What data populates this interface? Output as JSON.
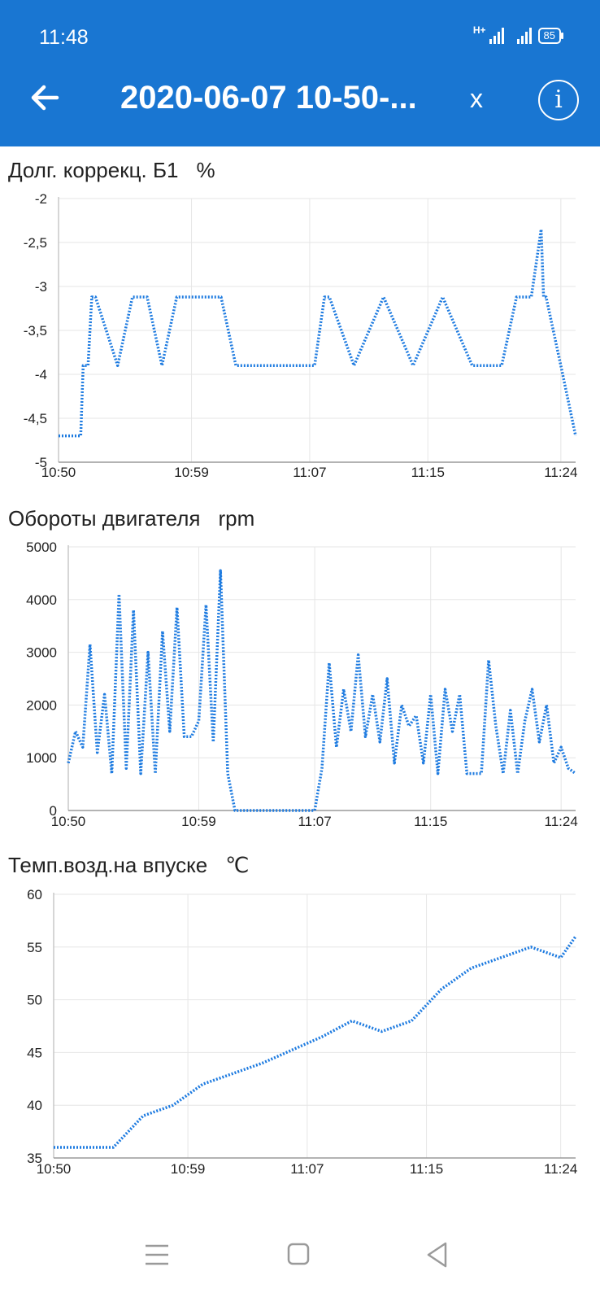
{
  "status_bar": {
    "time": "11:48",
    "network": "H+",
    "battery": "85"
  },
  "app_bar": {
    "title": "2020-06-07 10-50-...",
    "close_label": "x",
    "info_label": "i"
  },
  "colors": {
    "accent": "#1976d2",
    "series": "#1e7be0",
    "grid": "#e6e6e6"
  },
  "icons": {
    "back": "arrow-left-icon",
    "info": "info-circle-icon",
    "menu": "menu-icon",
    "home": "square-icon",
    "nav_back": "triangle-back-icon"
  },
  "charts": [
    {
      "title": "Долг. коррекц. Б1",
      "unit": "%"
    },
    {
      "title": "Обороты двигателя",
      "unit": "rpm"
    },
    {
      "title": "Темп.возд.на впуске",
      "unit": "℃"
    }
  ],
  "chart_data": [
    {
      "type": "line",
      "title": "Долг. коррекц. Б1",
      "ylabel": "%",
      "ylim": [
        -5,
        -2
      ],
      "yticks": [
        -2,
        -2.5,
        -3,
        -3.5,
        -4,
        -4.5,
        -5
      ],
      "ytick_labels": [
        "-2",
        "-2,5",
        "-3",
        "-3,5",
        "-4",
        "-4,5",
        "-5"
      ],
      "xlim": [
        "10:50",
        "11:25"
      ],
      "xticks": [
        "10:50",
        "10:59",
        "11:07",
        "11:15",
        "11:24"
      ],
      "grid": true,
      "series": [
        {
          "x": [
            "10:50",
            "10:51:30",
            "10:51:40",
            "10:52",
            "10:52:15",
            "10:52:30",
            "10:54",
            "10:55",
            "10:56",
            "10:57",
            "10:58",
            "11:00",
            "11:01",
            "11:02",
            "11:04",
            "11:06",
            "11:07:20",
            "11:08",
            "11:08:20",
            "11:10",
            "11:12",
            "11:14",
            "11:16",
            "11:18",
            "11:19",
            "11:20",
            "11:21",
            "11:22",
            "11:22:40",
            "11:22:50",
            "11:23",
            "11:24",
            "11:25"
          ],
          "y": [
            -4.7,
            -4.7,
            -3.9,
            -3.9,
            -3.12,
            -3.12,
            -3.9,
            -3.12,
            -3.12,
            -3.9,
            -3.12,
            -3.12,
            -3.12,
            -3.9,
            -3.9,
            -3.9,
            -3.9,
            -3.12,
            -3.12,
            -3.9,
            -3.12,
            -3.9,
            -3.12,
            -3.9,
            -3.9,
            -3.9,
            -3.12,
            -3.12,
            -2.35,
            -3.12,
            -3.12,
            -3.9,
            -4.7
          ]
        }
      ]
    },
    {
      "type": "line",
      "title": "Обороты двигателя",
      "ylabel": "rpm",
      "ylim": [
        0,
        5000
      ],
      "yticks": [
        0,
        1000,
        2000,
        3000,
        4000,
        5000
      ],
      "ytick_labels": [
        "0",
        "1000",
        "2000",
        "3000",
        "4000",
        "5000"
      ],
      "xlim": [
        "10:50",
        "11:25"
      ],
      "xticks": [
        "10:50",
        "10:59",
        "11:07",
        "11:15",
        "11:24"
      ],
      "grid": true,
      "series": [
        {
          "x": [
            "10:50",
            "10:50:30",
            "10:51",
            "10:51:30",
            "10:52",
            "10:52:30",
            "10:53",
            "10:53:30",
            "10:54",
            "10:54:30",
            "10:55",
            "10:55:30",
            "10:56",
            "10:56:30",
            "10:57",
            "10:57:30",
            "10:58",
            "10:58:30",
            "10:59",
            "10:59:30",
            "11:00",
            "11:00:30",
            "11:01",
            "11:01:30",
            "11:02",
            "11:04",
            "11:06",
            "11:07",
            "11:07:30",
            "11:08",
            "11:08:30",
            "11:09",
            "11:09:30",
            "11:10",
            "11:10:30",
            "11:11",
            "11:11:30",
            "11:12",
            "11:12:30",
            "11:13",
            "11:13:30",
            "11:14",
            "11:14:30",
            "11:15",
            "11:15:30",
            "11:16",
            "11:16:30",
            "11:17",
            "11:17:30",
            "11:18",
            "11:18:30",
            "11:19",
            "11:19:30",
            "11:20",
            "11:20:30",
            "11:21",
            "11:21:30",
            "11:22",
            "11:22:30",
            "11:23",
            "11:23:30",
            "11:24",
            "11:24:30",
            "11:25"
          ],
          "y": [
            900,
            1500,
            1200,
            3150,
            1100,
            2200,
            700,
            4100,
            800,
            3800,
            700,
            3000,
            700,
            3400,
            1500,
            3850,
            1400,
            1400,
            1700,
            3900,
            1300,
            4550,
            700,
            0,
            0,
            0,
            0,
            0,
            800,
            2800,
            1200,
            2300,
            1500,
            2950,
            1400,
            2200,
            1300,
            2500,
            900,
            2000,
            1600,
            1800,
            900,
            2200,
            700,
            2300,
            1500,
            2200,
            700,
            700,
            700,
            2850,
            1600,
            700,
            1900,
            700,
            1700,
            2300,
            1300,
            2000,
            900,
            1200,
            800,
            700
          ]
        }
      ]
    },
    {
      "type": "line",
      "title": "Темп.возд.на впуске",
      "ylabel": "℃",
      "ylim": [
        35,
        60
      ],
      "yticks": [
        35,
        40,
        45,
        50,
        55,
        60
      ],
      "ytick_labels": [
        "35",
        "40",
        "45",
        "50",
        "55",
        "60"
      ],
      "xlim": [
        "10:50",
        "11:25"
      ],
      "xticks": [
        "10:50",
        "10:59",
        "11:07",
        "11:15",
        "11:24"
      ],
      "grid": true,
      "series": [
        {
          "x": [
            "10:50",
            "10:54",
            "10:56",
            "10:58",
            "11:00",
            "11:04",
            "11:08",
            "11:10",
            "11:12",
            "11:14",
            "11:16",
            "11:18",
            "11:22",
            "11:24",
            "11:25"
          ],
          "y": [
            36,
            36,
            39,
            40,
            42,
            44,
            46.5,
            48,
            47,
            48,
            51,
            53,
            55,
            54,
            56
          ]
        }
      ]
    }
  ]
}
